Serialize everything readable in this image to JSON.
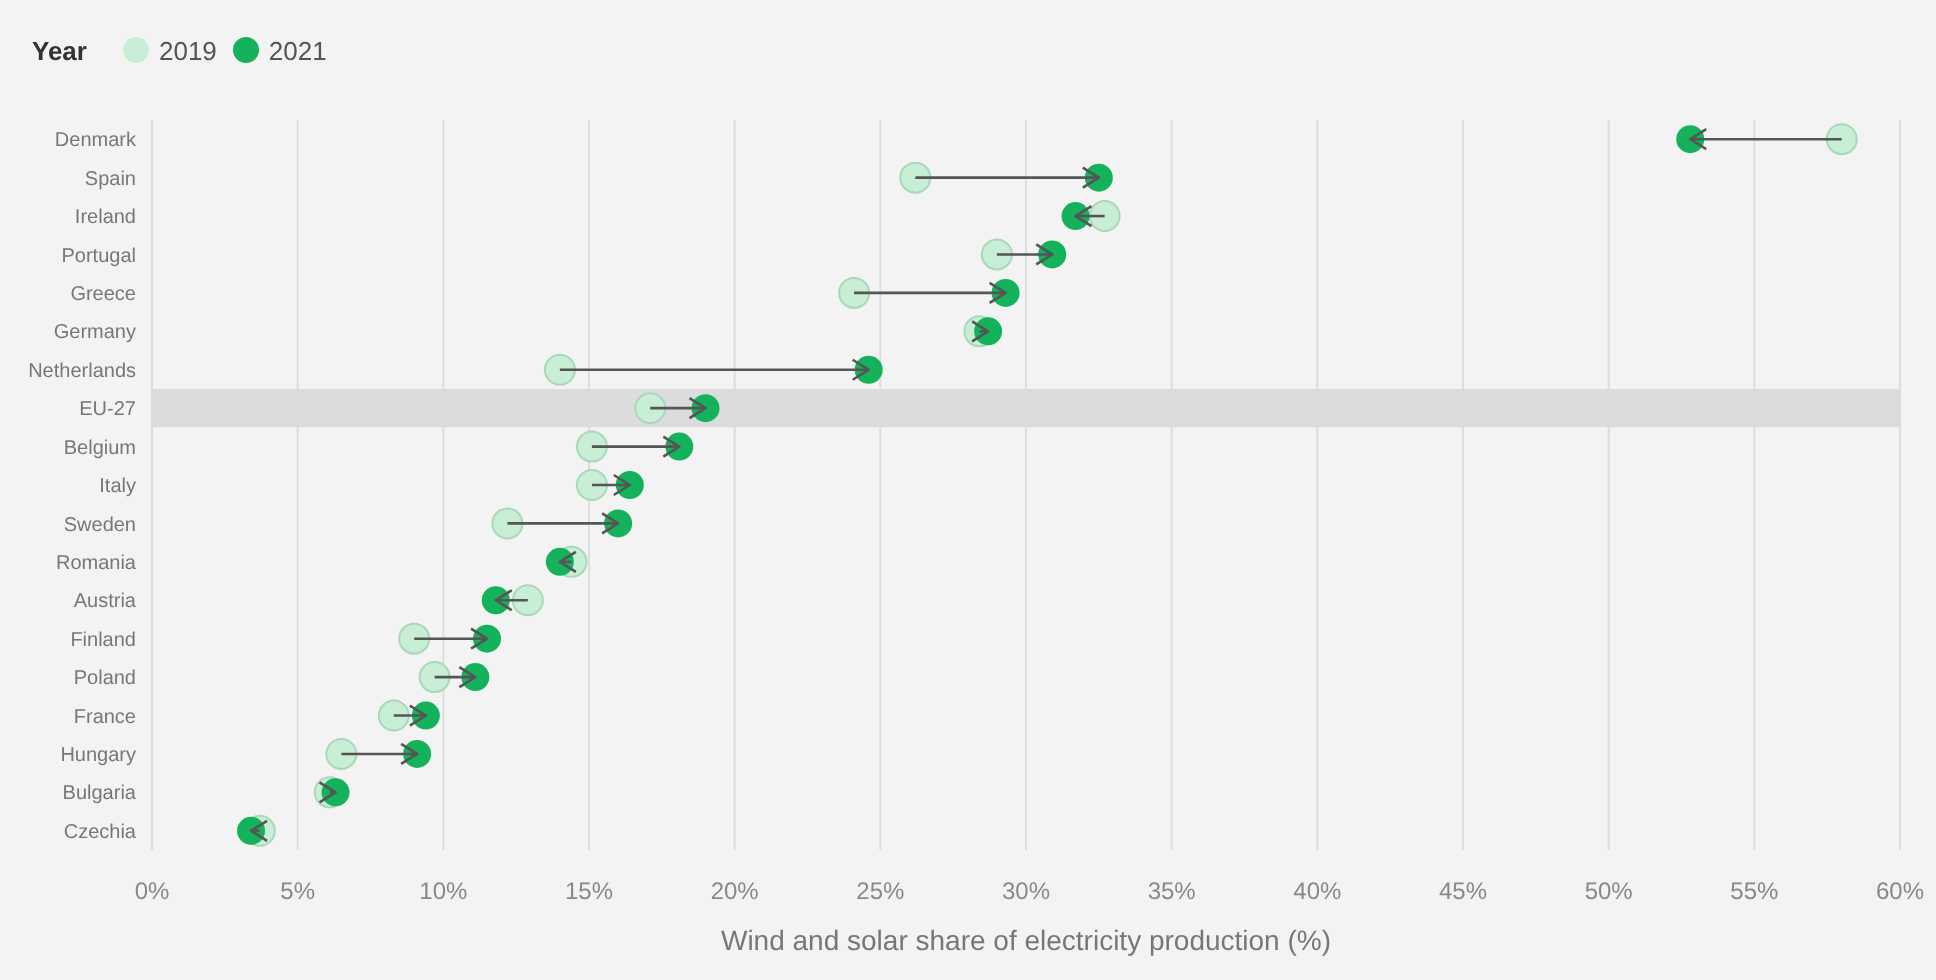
{
  "chart_data": {
    "type": "scatter",
    "xlabel": "Wind and solar share of electricity production (%)",
    "legend_title": "Year",
    "legend": "top left",
    "grid": "x",
    "marker": "circle",
    "orientation": "horizontal",
    "categories": [
      "Denmark",
      "Spain",
      "Ireland",
      "Portugal",
      "Greece",
      "Germany",
      "Netherlands",
      "EU-27",
      "Belgium",
      "Italy",
      "Sweden",
      "Romania",
      "Austria",
      "Finland",
      "Poland",
      "France",
      "Hungary",
      "Bulgaria",
      "Czechia"
    ],
    "series": [
      {
        "name": "2019",
        "color": "#c8efd6",
        "values": [
          58.0,
          26.2,
          32.7,
          29.0,
          24.1,
          28.4,
          14.0,
          17.1,
          15.1,
          15.1,
          12.2,
          14.4,
          12.9,
          9.0,
          9.7,
          8.3,
          6.5,
          6.1,
          3.7
        ]
      },
      {
        "name": "2021",
        "color": "#14b25a",
        "values": [
          52.8,
          32.5,
          31.7,
          30.9,
          29.3,
          28.7,
          24.6,
          19.0,
          18.1,
          16.4,
          16.0,
          14.0,
          11.8,
          11.5,
          11.1,
          9.4,
          9.1,
          6.3,
          3.4
        ]
      }
    ],
    "bands": [
      {
        "axis": "y",
        "from": "EU-27",
        "to": "EU-27",
        "color": "#dcdcdc"
      }
    ],
    "xlim": [
      0,
      60
    ],
    "xticks": [
      {
        "value": 0,
        "label": "0%"
      },
      {
        "value": 5,
        "label": "5%"
      },
      {
        "value": 10,
        "label": "10%"
      },
      {
        "value": 15,
        "label": "15%"
      },
      {
        "value": 20,
        "label": "20%"
      },
      {
        "value": 25,
        "label": "25%"
      },
      {
        "value": 30,
        "label": "30%"
      },
      {
        "value": 35,
        "label": "35%"
      },
      {
        "value": 40,
        "label": "40%"
      },
      {
        "value": 45,
        "label": "45%"
      },
      {
        "value": 50,
        "label": "50%"
      },
      {
        "value": 55,
        "label": "55%"
      },
      {
        "value": 60,
        "label": "60%"
      }
    ]
  }
}
